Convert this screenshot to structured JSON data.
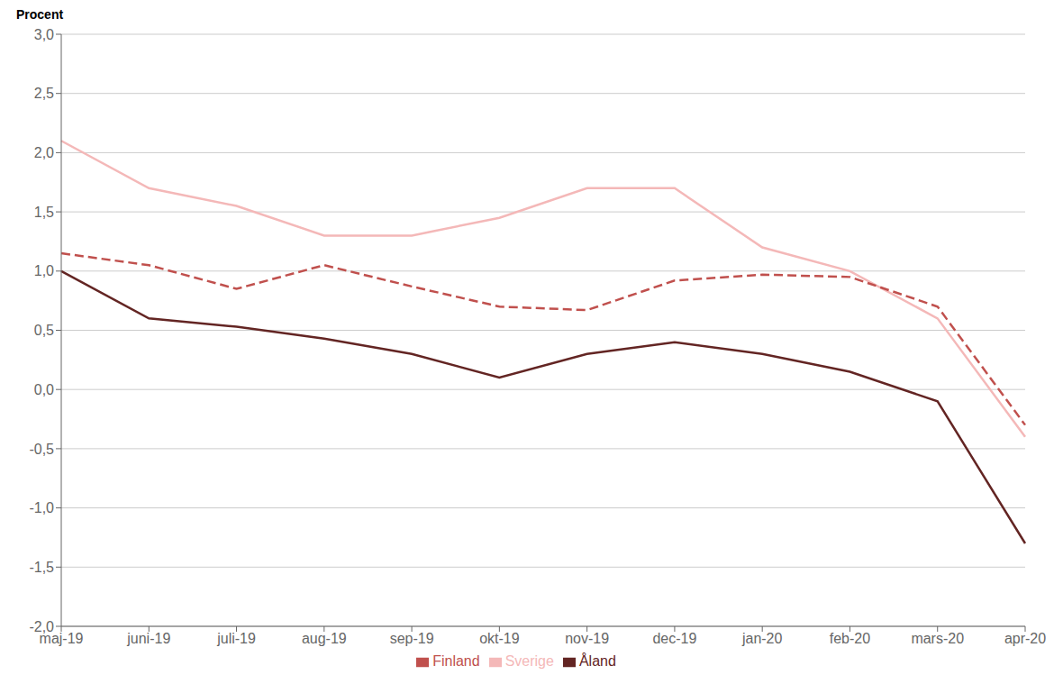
{
  "chart_data": {
    "type": "line",
    "ylabel": "Procent",
    "categories": [
      "maj-19",
      "juni-19",
      "juli-19",
      "aug-19",
      "sep-19",
      "okt-19",
      "nov-19",
      "dec-19",
      "jan-20",
      "feb-20",
      "mars-20",
      "apr-20"
    ],
    "series": [
      {
        "name": "Sverige",
        "color": "#f4b8b8",
        "line_style": "solid",
        "values": [
          2.1,
          1.7,
          1.55,
          1.3,
          1.3,
          1.45,
          1.7,
          1.7,
          1.2,
          1.0,
          0.6,
          -0.4
        ]
      },
      {
        "name": "Finland",
        "color": "#c0504d",
        "line_style": "dashed",
        "values": [
          1.15,
          1.05,
          0.85,
          1.05,
          0.87,
          0.7,
          0.67,
          0.92,
          0.97,
          0.95,
          0.7,
          -0.3
        ]
      },
      {
        "name": "Åland",
        "color": "#632523",
        "line_style": "solid",
        "values": [
          1.0,
          0.6,
          0.53,
          0.43,
          0.3,
          0.1,
          0.3,
          0.4,
          0.3,
          0.15,
          -0.1,
          -1.3
        ]
      }
    ],
    "ylim": [
      -2.0,
      3.0
    ],
    "yticks": [
      {
        "value": -2.0,
        "label": "-2,0"
      },
      {
        "value": -1.5,
        "label": "-1,5"
      },
      {
        "value": -1.0,
        "label": "-1,0"
      },
      {
        "value": -0.5,
        "label": "-0,5"
      },
      {
        "value": 0.0,
        "label": "0,0"
      },
      {
        "value": 0.5,
        "label": "0,5"
      },
      {
        "value": 1.0,
        "label": "1,0"
      },
      {
        "value": 1.5,
        "label": "1,5"
      },
      {
        "value": 2.0,
        "label": "2,0"
      },
      {
        "value": 2.5,
        "label": "2,5"
      },
      {
        "value": 3.0,
        "label": "3,0"
      }
    ],
    "grid": true,
    "legend": "bottom"
  }
}
